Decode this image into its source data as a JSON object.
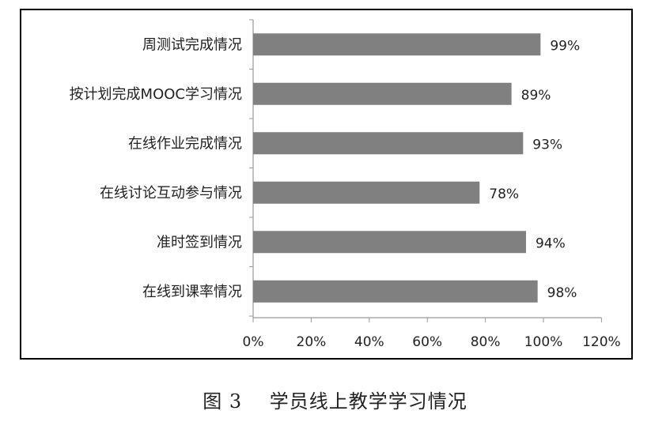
{
  "chart_data": {
    "type": "bar",
    "orientation": "horizontal",
    "categories": [
      "周测试完成情况",
      "按计划完成MOOC学习情况",
      "在线作业完成情况",
      "在线讨论互动参与情况",
      "准时签到情况",
      "在线到课率情况"
    ],
    "values": [
      99,
      89,
      93,
      78,
      94,
      98
    ],
    "data_labels": [
      "99%",
      "89%",
      "93%",
      "78%",
      "94%",
      "98%"
    ],
    "x_ticks": [
      "0%",
      "20%",
      "40%",
      "60%",
      "80%",
      "100%",
      "120%"
    ],
    "xlim": [
      0,
      120
    ],
    "grid": false,
    "legend": "none",
    "bar_color": "#808080"
  },
  "caption": {
    "figure_no": "图 3",
    "text": "学员线上教学学习情况"
  }
}
